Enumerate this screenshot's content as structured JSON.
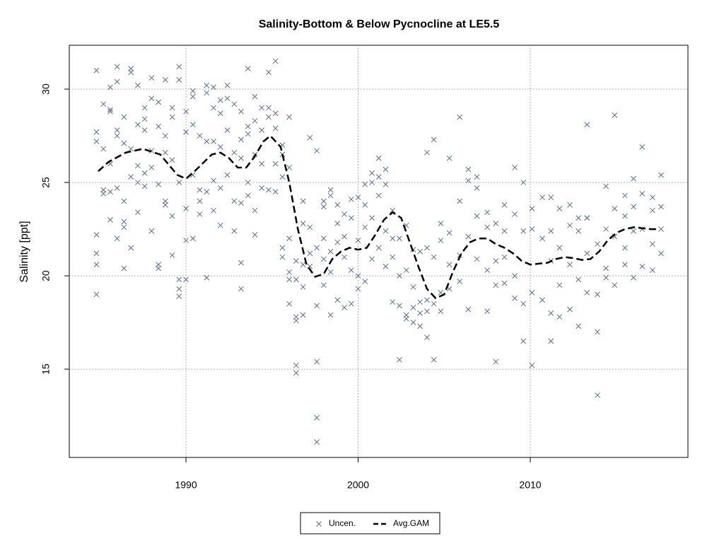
{
  "chart_data": {
    "type": "scatter",
    "title": "Salinity-Bottom & Below Pycnocline at LE5.5",
    "y_label": "Salinity [ppt]",
    "xlim": [
      1983.22,
      2019.16
    ],
    "ylim": [
      10.27,
      32.35
    ],
    "xticks": [
      1990,
      2000,
      2010
    ],
    "yticks": [
      15,
      20,
      25,
      30
    ],
    "grid": true,
    "legend": "bottom",
    "series": [
      {
        "name": "Uncen.",
        "type": "scatter",
        "color": "#5b6b8c",
        "x": [
          1984.8,
          1984.8,
          1984.8,
          1984.8,
          1984.8,
          1984.8,
          1984.8,
          1985.2,
          1985.2,
          1985.2,
          1985.2,
          1985.6,
          1985.6,
          1985.6,
          1985.6,
          1985.6,
          1985.6,
          1986,
          1986,
          1986,
          1986,
          1986,
          1986,
          1986.4,
          1986.4,
          1986.4,
          1986.4,
          1986.4,
          1986.4,
          1986.8,
          1986.8,
          1986.8,
          1986.8,
          1986.8,
          1987.2,
          1987.2,
          1987.2,
          1987.2,
          1987.2,
          1987.6,
          1987.6,
          1987.6,
          1987.6,
          1987.6,
          1988,
          1988,
          1988,
          1988,
          1988,
          1988.4,
          1988.4,
          1988.4,
          1988.4,
          1988.4,
          1988.8,
          1988.8,
          1988.8,
          1988.8,
          1988.8,
          1989.2,
          1989.2,
          1989.2,
          1989.2,
          1989.2,
          1989.6,
          1989.6,
          1989.6,
          1989.6,
          1989.6,
          1989.6,
          1990,
          1990,
          1990,
          1990,
          1990,
          1990.4,
          1990.4,
          1990.4,
          1990.4,
          1990.4,
          1990.8,
          1990.8,
          1990.8,
          1990.8,
          1991.2,
          1991.2,
          1991.2,
          1991.2,
          1991.2,
          1991.6,
          1991.6,
          1991.6,
          1991.6,
          1991.6,
          1992,
          1992,
          1992,
          1992,
          1992,
          1992.4,
          1992.4,
          1992.4,
          1992.4,
          1992.8,
          1992.8,
          1992.8,
          1992.8,
          1993.2,
          1993.2,
          1993.2,
          1993.2,
          1993.2,
          1993.2,
          1993.6,
          1993.6,
          1993.6,
          1993.6,
          1993.6,
          1994,
          1994,
          1994,
          1994,
          1994,
          1994.4,
          1994.4,
          1994.4,
          1994.4,
          1994.8,
          1994.8,
          1994.8,
          1994.8,
          1995.2,
          1995.2,
          1995.2,
          1995.2,
          1995.2,
          1995.6,
          1995.6,
          1995.6,
          1995.6,
          1995.6,
          1996,
          1996,
          1996,
          1996,
          1996,
          1996,
          1996.4,
          1996.4,
          1996.4,
          1996.4,
          1996.4,
          1996.4,
          1996.8,
          1996.8,
          1996.8,
          1996.8,
          1996.8,
          1997.2,
          1997.2,
          1997.2,
          1997.2,
          1997.6,
          1997.6,
          1997.6,
          1997.6,
          1997.6,
          1997.6,
          1998,
          1998,
          1998,
          1998,
          1998,
          1998.4,
          1998.4,
          1998.4,
          1998.4,
          1998.4,
          1998.8,
          1998.8,
          1998.8,
          1998.8,
          1999.2,
          1999.2,
          1999.2,
          1999.2,
          1999.6,
          1999.6,
          1999.6,
          1999.6,
          2000,
          2000,
          2000,
          2000,
          2000.4,
          2000.4,
          2000.4,
          2000.4,
          2000.8,
          2000.8,
          2000.8,
          2000.8,
          2001.2,
          2001.2,
          2001.2,
          2001.2,
          2001.6,
          2001.6,
          2001.6,
          2001.6,
          2002,
          2002,
          2002,
          2002,
          2002.4,
          2002.4,
          2002.4,
          2002.4,
          2002.8,
          2002.8,
          2002.8,
          2002.8,
          2003.2,
          2003.2,
          2003.2,
          2003.2,
          2003.6,
          2003.6,
          2003.6,
          2003.6,
          2004,
          2004,
          2004,
          2004,
          2004,
          2004.4,
          2004.4,
          2004.4,
          2004.4,
          2004.8,
          2004.8,
          2004.8,
          2004.8,
          2005.3,
          2005.3,
          2005.3,
          2005.3,
          2005.9,
          2005.9,
          2005.9,
          2005.9,
          2006.4,
          2006.4,
          2006.4,
          2006.4,
          2006.9,
          2006.9,
          2006.9,
          2006.9,
          2007.5,
          2007.5,
          2007.5,
          2007.5,
          2008,
          2008,
          2008,
          2008,
          2008.5,
          2008.5,
          2008.5,
          2008.5,
          2009.1,
          2009.1,
          2009.1,
          2009.1,
          2009.6,
          2009.6,
          2009.6,
          2009.6,
          2010.1,
          2010.1,
          2010.1,
          2010.1,
          2010.7,
          2010.7,
          2010.7,
          2011.2,
          2011.2,
          2011.2,
          2011.2,
          2011.2,
          2011.7,
          2011.7,
          2011.7,
          2011.7,
          2012.3,
          2012.3,
          2012.3,
          2012.3,
          2012.8,
          2012.8,
          2012.8,
          2012.8,
          2013.3,
          2013.3,
          2013.3,
          2013.3,
          2013.3,
          2013.9,
          2013.9,
          2013.9,
          2013.9,
          2014.4,
          2014.4,
          2014.4,
          2014.4,
          2014.9,
          2014.9,
          2014.9,
          2014.9,
          2015.5,
          2015.5,
          2015.5,
          2015.5,
          2016,
          2016,
          2016,
          2016,
          2016.5,
          2016.5,
          2016.5,
          2016.5,
          2017.1,
          2017.1,
          2017.1,
          2017.1,
          2017.6,
          2017.6,
          2017.6,
          2017.6
        ],
        "values": [
          31.0,
          27.7,
          27.2,
          22.2,
          21.2,
          20.6,
          19.0,
          26.8,
          24.6,
          24.4,
          29.2,
          28.9,
          28.8,
          30.1,
          26.0,
          23.0,
          24.5,
          31.2,
          30.4,
          27.5,
          24.7,
          27.8,
          22.0,
          28.5,
          24.0,
          22.9,
          22.6,
          20.4,
          27.1,
          30.9,
          31.1,
          26.8,
          25.3,
          21.5,
          30.2,
          28.1,
          25.9,
          25.0,
          23.4,
          29.0,
          28.4,
          27.8,
          25.5,
          24.8,
          30.6,
          29.5,
          26.7,
          22.4,
          25.8,
          29.3,
          28.0,
          24.9,
          20.6,
          20.4,
          30.5,
          27.5,
          26.6,
          24.0,
          23.8,
          28.5,
          29.0,
          26.2,
          23.2,
          21.1,
          31.2,
          30.5,
          25.0,
          19.8,
          18.9,
          19.3,
          28.8,
          27.7,
          23.6,
          21.9,
          19.8,
          29.9,
          29.6,
          28.1,
          25.4,
          22.0,
          27.5,
          24.6,
          24.0,
          23.3,
          30.2,
          29.8,
          27.2,
          24.5,
          19.9,
          30.1,
          29.0,
          27.2,
          25.1,
          23.5,
          29.4,
          28.7,
          26.9,
          24.7,
          22.7,
          30.2,
          29.5,
          27.8,
          25.4,
          29.2,
          26.6,
          24.0,
          22.4,
          28.8,
          27.3,
          26.3,
          23.9,
          20.7,
          19.3,
          31.1,
          28.0,
          27.6,
          25.0,
          24.3,
          29.6,
          28.3,
          26.5,
          23.5,
          22.2,
          29.0,
          27.8,
          26.0,
          24.7,
          30.9,
          29.0,
          28.5,
          24.6,
          31.5,
          28.7,
          27.9,
          26.0,
          24.5,
          27.0,
          26.5,
          25.3,
          21.5,
          21.0,
          28.5,
          25.8,
          22.0,
          20.2,
          19.8,
          18.5,
          20.8,
          19.8,
          17.8,
          17.6,
          15.2,
          14.8,
          24.0,
          22.8,
          20.6,
          19.4,
          17.9,
          27.4,
          22.6,
          21.2,
          20.5,
          26.7,
          21.5,
          18.4,
          15.4,
          12.4,
          11.1,
          24.0,
          23.7,
          22.0,
          20.9,
          19.5,
          24.6,
          24.3,
          21.3,
          20.2,
          17.9,
          23.8,
          22.8,
          21.8,
          18.7,
          23.3,
          22.1,
          21.0,
          18.3,
          24.1,
          23.1,
          20.3,
          18.5,
          24.2,
          21.9,
          20.0,
          19.3,
          24.9,
          23.8,
          22.6,
          19.7,
          25.5,
          25.0,
          23.1,
          20.9,
          26.3,
          25.3,
          24.3,
          21.5,
          25.7,
          24.9,
          22.4,
          20.5,
          23.5,
          22.0,
          21.0,
          18.6,
          22.0,
          20.0,
          18.4,
          15.5,
          22.7,
          20.3,
          17.9,
          17.7,
          21.4,
          19.4,
          18.3,
          17.5,
          21.3,
          18.6,
          18.0,
          17.3,
          26.6,
          21.5,
          18.7,
          18.1,
          16.7,
          27.3,
          21.0,
          18.5,
          15.5,
          22.8,
          21.9,
          19.1,
          18.1,
          26.3,
          22.3,
          20.6,
          19.3,
          28.5,
          24.0,
          21.1,
          19.7,
          25.7,
          25.1,
          22.1,
          18.2,
          25.3,
          24.7,
          23.2,
          20.9,
          23.4,
          22.6,
          20.3,
          18.1,
          22.8,
          20.8,
          19.5,
          15.4,
          23.8,
          22.4,
          21.0,
          19.6,
          25.8,
          23.3,
          20.0,
          18.8,
          25.0,
          22.4,
          18.5,
          16.5,
          23.6,
          22.5,
          19.1,
          15.2,
          24.2,
          22.0,
          18.7,
          16.5,
          22.4,
          20.8,
          18.0,
          24.2,
          23.6,
          21.5,
          19.5,
          17.8,
          23.8,
          22.7,
          20.6,
          18.2,
          23.1,
          22.4,
          19.8,
          17.3,
          28.1,
          23.1,
          21.2,
          19.1,
          23.1,
          21.7,
          19.0,
          17.0,
          13.6,
          24.8,
          22.5,
          20.4,
          19.9,
          28.6,
          23.6,
          22.1,
          19.5,
          24.3,
          23.2,
          21.5,
          20.6,
          25.2,
          23.7,
          22.4,
          19.9,
          26.9,
          24.4,
          22.5,
          20.5,
          24.2,
          23.5,
          21.7,
          20.3,
          25.4,
          23.7,
          22.5,
          21.2
        ]
      },
      {
        "name": "Avg.GAM",
        "type": "line",
        "color": "#000000",
        "x": [
          1984.9,
          1985.5,
          1986.5,
          1987.5,
          1988.5,
          1989.5,
          1990,
          1990.5,
          1991.5,
          1992,
          1992.5,
          1993,
          1993.5,
          1994,
          1994.5,
          1994.9,
          1995.5,
          1996,
          1996.5,
          1997,
          1997.5,
          1998,
          1998.5,
          1999,
          1999.5,
          2000,
          2000.5,
          2001,
          2001.5,
          2002,
          2002.5,
          2003,
          2003.5,
          2004,
          2004.5,
          2005,
          2005.5,
          2006,
          2006.5,
          2007,
          2007.5,
          2008,
          2008.5,
          2009,
          2009.5,
          2010,
          2010.5,
          2011,
          2011.5,
          2012,
          2012.5,
          2013,
          2013.5,
          2014,
          2014.5,
          2015,
          2015.5,
          2016,
          2016.5,
          2017,
          2017.5
        ],
        "values": [
          25.6,
          26.1,
          26.6,
          26.8,
          26.5,
          25.4,
          25.2,
          25.6,
          26.5,
          26.6,
          26.3,
          25.8,
          25.8,
          26.4,
          27.2,
          27.5,
          26.9,
          25.0,
          22.5,
          20.6,
          19.95,
          20.1,
          20.9,
          21.3,
          21.5,
          21.4,
          21.5,
          22.2,
          23.0,
          23.4,
          23.1,
          21.8,
          20.5,
          19.3,
          18.8,
          19.0,
          20.2,
          21.2,
          21.8,
          22.0,
          22.0,
          21.7,
          21.5,
          21.2,
          20.8,
          20.6,
          20.65,
          20.7,
          20.9,
          21.0,
          20.95,
          20.85,
          20.9,
          21.3,
          21.9,
          22.3,
          22.5,
          22.6,
          22.55,
          22.5,
          22.5
        ]
      }
    ]
  }
}
